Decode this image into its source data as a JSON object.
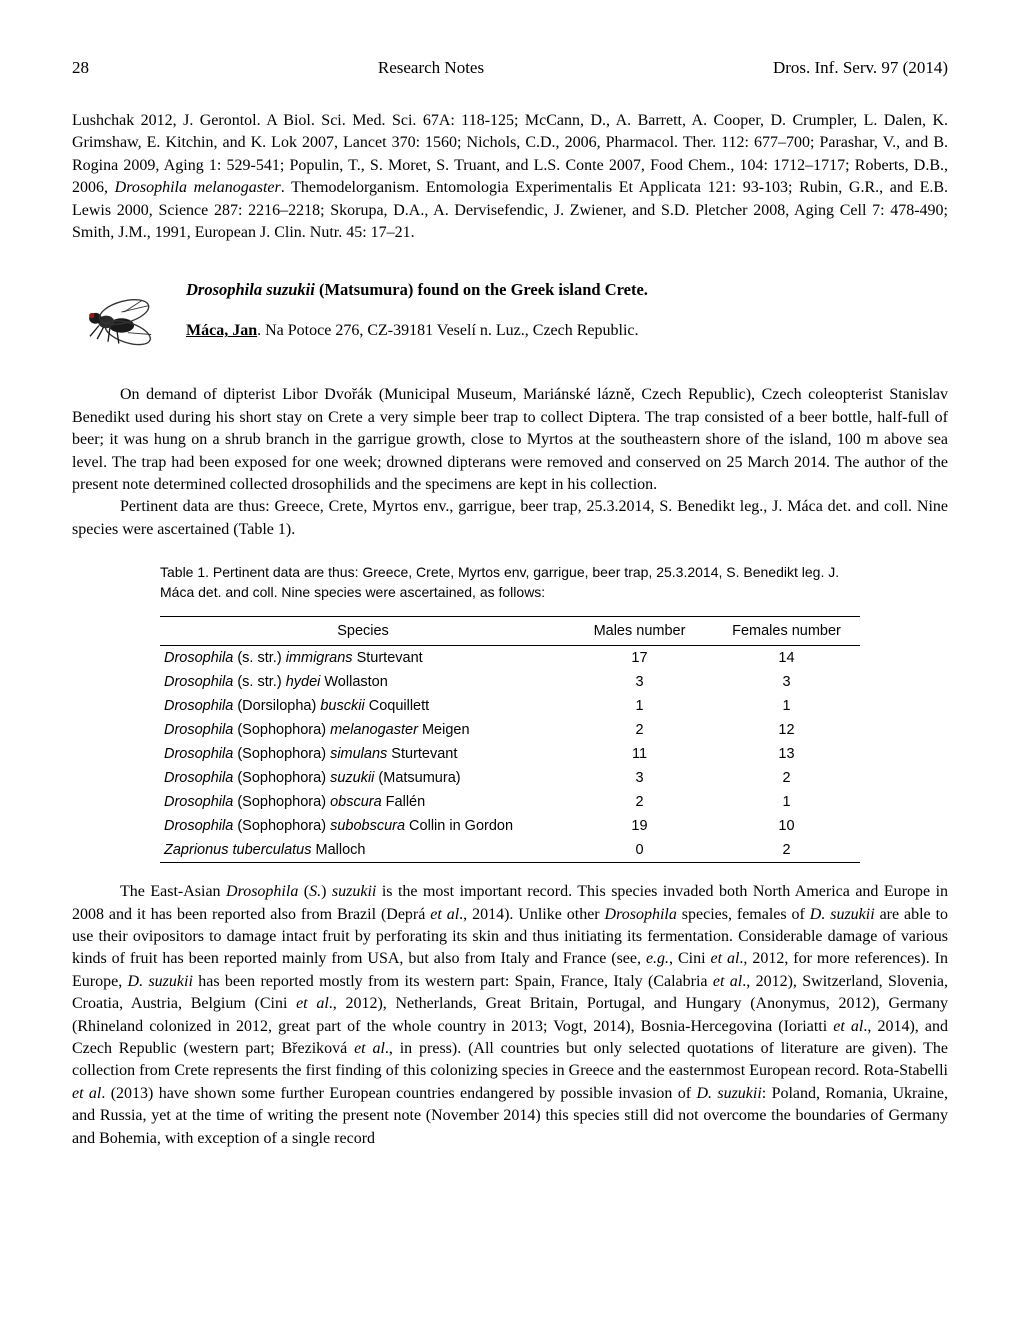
{
  "header": {
    "page_number": "28",
    "center": "Research Notes",
    "right": "Dros. Inf. Serv. 97 (2014)"
  },
  "references_text": "Lushchak 2012, J. Gerontol. A Biol. Sci. Med. Sci. 67A: 118-125;  McCann, D., A. Barrett, A. Cooper, D. Crumpler, L. Dalen, K. Grimshaw, E. Kitchin, and K. Lok 2007, Lancet 370: 1560;  Nichols, C.D., 2006, Pharmacol. Ther. 112: 677–700;  Parashar, V., and B. Rogina 2009, Aging 1: 529-541;  Populin, T., S. Moret, S. Truant, and L.S. Conte 2007, Food Chem., 104: 1712–1717;  Roberts, D.B., 2006, ",
  "references_italic1": "Drosophila melanogaster",
  "references_text2": ". Themodelorganism. Entomologia Experimentalis Et Applicata 121: 93-103;  Rubin, G.R., and E.B. Lewis 2000, Science 287: 2216–2218;  Skorupa, D.A., A. Dervisefendic, J. Zwiener, and S.D. Pletcher 2008, Aging Cell 7: 478-490;  Smith, J.M., 1991, European J. Clin. Nutr. 45: 17–21.",
  "article": {
    "title_italic": "Drosophila suzukii",
    "title_rest": " (Matsumura) found on the Greek island Crete.",
    "author": "Máca, Jan",
    "author_affiliation": ".  Na Potoce 276, CZ-39181 Veselí n. Luz., Czech Republic."
  },
  "body": {
    "p1": "On demand of dipterist Libor Dvořák (Municipal Museum, Mariánské lázně, Czech Republic), Czech coleopterist Stanislav Benedikt used during his short stay on Crete a very simple beer trap to collect Diptera. The trap consisted of a beer bottle, half-full of beer; it was hung on a shrub branch in the garrigue growth, close to Myrtos at the southeastern shore of the island, 100 m above sea level.  The trap had been exposed for one week;  drowned dipterans were removed and conserved on 25 March 2014.  The author of the present note determined collected drosophilids and the specimens are kept in his collection.",
    "p2": "Pertinent data are thus:  Greece, Crete, Myrtos env., garrigue, beer trap, 25.3.2014, S. Benedikt leg., J. Máca det. and coll.  Nine species were ascertained (Table 1).",
    "p3_a": "The East-Asian ",
    "p3_i1": "Drosophila",
    "p3_b": " (",
    "p3_i2": "S.",
    "p3_c": ") ",
    "p3_i3": "suzukii",
    "p3_d": " is the most important record.  This species invaded both North America and Europe in 2008 and it has been reported also from Brazil (Deprá ",
    "p3_i4": "et al",
    "p3_e": "., 2014).  Unlike other ",
    "p3_i5": "Drosophila",
    "p3_f": " species, females of ",
    "p3_i6": "D. suzukii",
    "p3_g": " are able to use their ovipositors to damage intact fruit by perforating its skin and thus initiating its fermentation.  Considerable damage of various kinds of fruit has been reported mainly from USA, but also from Italy and France (see, ",
    "p3_i7": "e.g.",
    "p3_h": ", Cini ",
    "p3_i8": "et al",
    "p3_i": "., 2012, for more references).  In Europe, ",
    "p3_i9": "D. suzukii",
    "p3_j": " has been reported mostly from its western part:  Spain, France, Italy (Calabria ",
    "p3_i10": "et al",
    "p3_k": "., 2012), Switzerland, Slovenia, Croatia, Austria, Belgium (Cini ",
    "p3_i11": "et al",
    "p3_l": "., 2012), Netherlands, Great Britain, Portugal, and Hungary (Anonymus, 2012), Germany (Rhineland colonized in 2012, great part of the whole country in 2013; Vogt, 2014), Bosnia-Hercegovina (Ioriatti ",
    "p3_i12": "et al",
    "p3_m": "., 2014), and Czech Republic (western part;  Březiková ",
    "p3_i13": "et al",
    "p3_n": "., in press).  (All countries but only selected quotations of literature are given).  The collection from Crete represents the first finding of this colonizing species in Greece and the easternmost European record.  Rota-Stabelli ",
    "p3_i14": "et al",
    "p3_o": ". (2013) have shown some further European countries endangered by possible invasion of ",
    "p3_i15": "D. suzukii",
    "p3_p": ":  Poland, Romania, Ukraine, and Russia, yet at the time of writing the present note (November 2014) this species still did not overcome the boundaries of Germany and Bohemia, with exception of a single record"
  },
  "table": {
    "caption": "Table 1.  Pertinent data are thus: Greece, Crete, Myrtos env, garrigue, beer trap, 25.3.2014, S. Benedikt leg. J. Máca det. and coll. Nine species were ascertained, as follows:",
    "columns": [
      "Species",
      "Males number",
      "Females number"
    ],
    "rows": [
      {
        "species_pre": "Drosophila",
        "species_mid": " (s. str.) ",
        "species_it": "immigrans",
        "species_post": " Sturtevant",
        "males": "17",
        "females": "14"
      },
      {
        "species_pre": "Drosophila",
        "species_mid": " (s. str.) ",
        "species_it": "hydei",
        "species_post": " Wollaston",
        "males": "3",
        "females": "3"
      },
      {
        "species_pre": "Drosophila",
        "species_mid": " (Dorsilopha) ",
        "species_it": "busckii",
        "species_post": " Coquillett",
        "males": "1",
        "females": "1"
      },
      {
        "species_pre": "Drosophila",
        "species_mid": " (Sophophora) ",
        "species_it": "melanogaster",
        "species_post": " Meigen",
        "males": "2",
        "females": "12"
      },
      {
        "species_pre": "Drosophila",
        "species_mid": " (Sophophora) ",
        "species_it": "simulans",
        "species_post": " Sturtevant",
        "males": "11",
        "females": "13"
      },
      {
        "species_pre": "Drosophila",
        "species_mid": " (Sophophora) ",
        "species_it": "suzukii",
        "species_post": " (Matsumura)",
        "males": "3",
        "females": "2"
      },
      {
        "species_pre": "Drosophila",
        "species_mid": " (Sophophora) ",
        "species_it": "obscura",
        "species_post": " Fallén",
        "males": "2",
        "females": "1"
      },
      {
        "species_pre": "Drosophila",
        "species_mid": " (Sophophora) ",
        "species_it": "subobscura",
        "species_post": " Collin in Gordon",
        "males": "19",
        "females": "10"
      },
      {
        "species_pre": "Zaprionus tuberculatus",
        "species_mid": "",
        "species_it": "",
        "species_post": " Malloch",
        "males": "0",
        "females": "2"
      }
    ]
  }
}
